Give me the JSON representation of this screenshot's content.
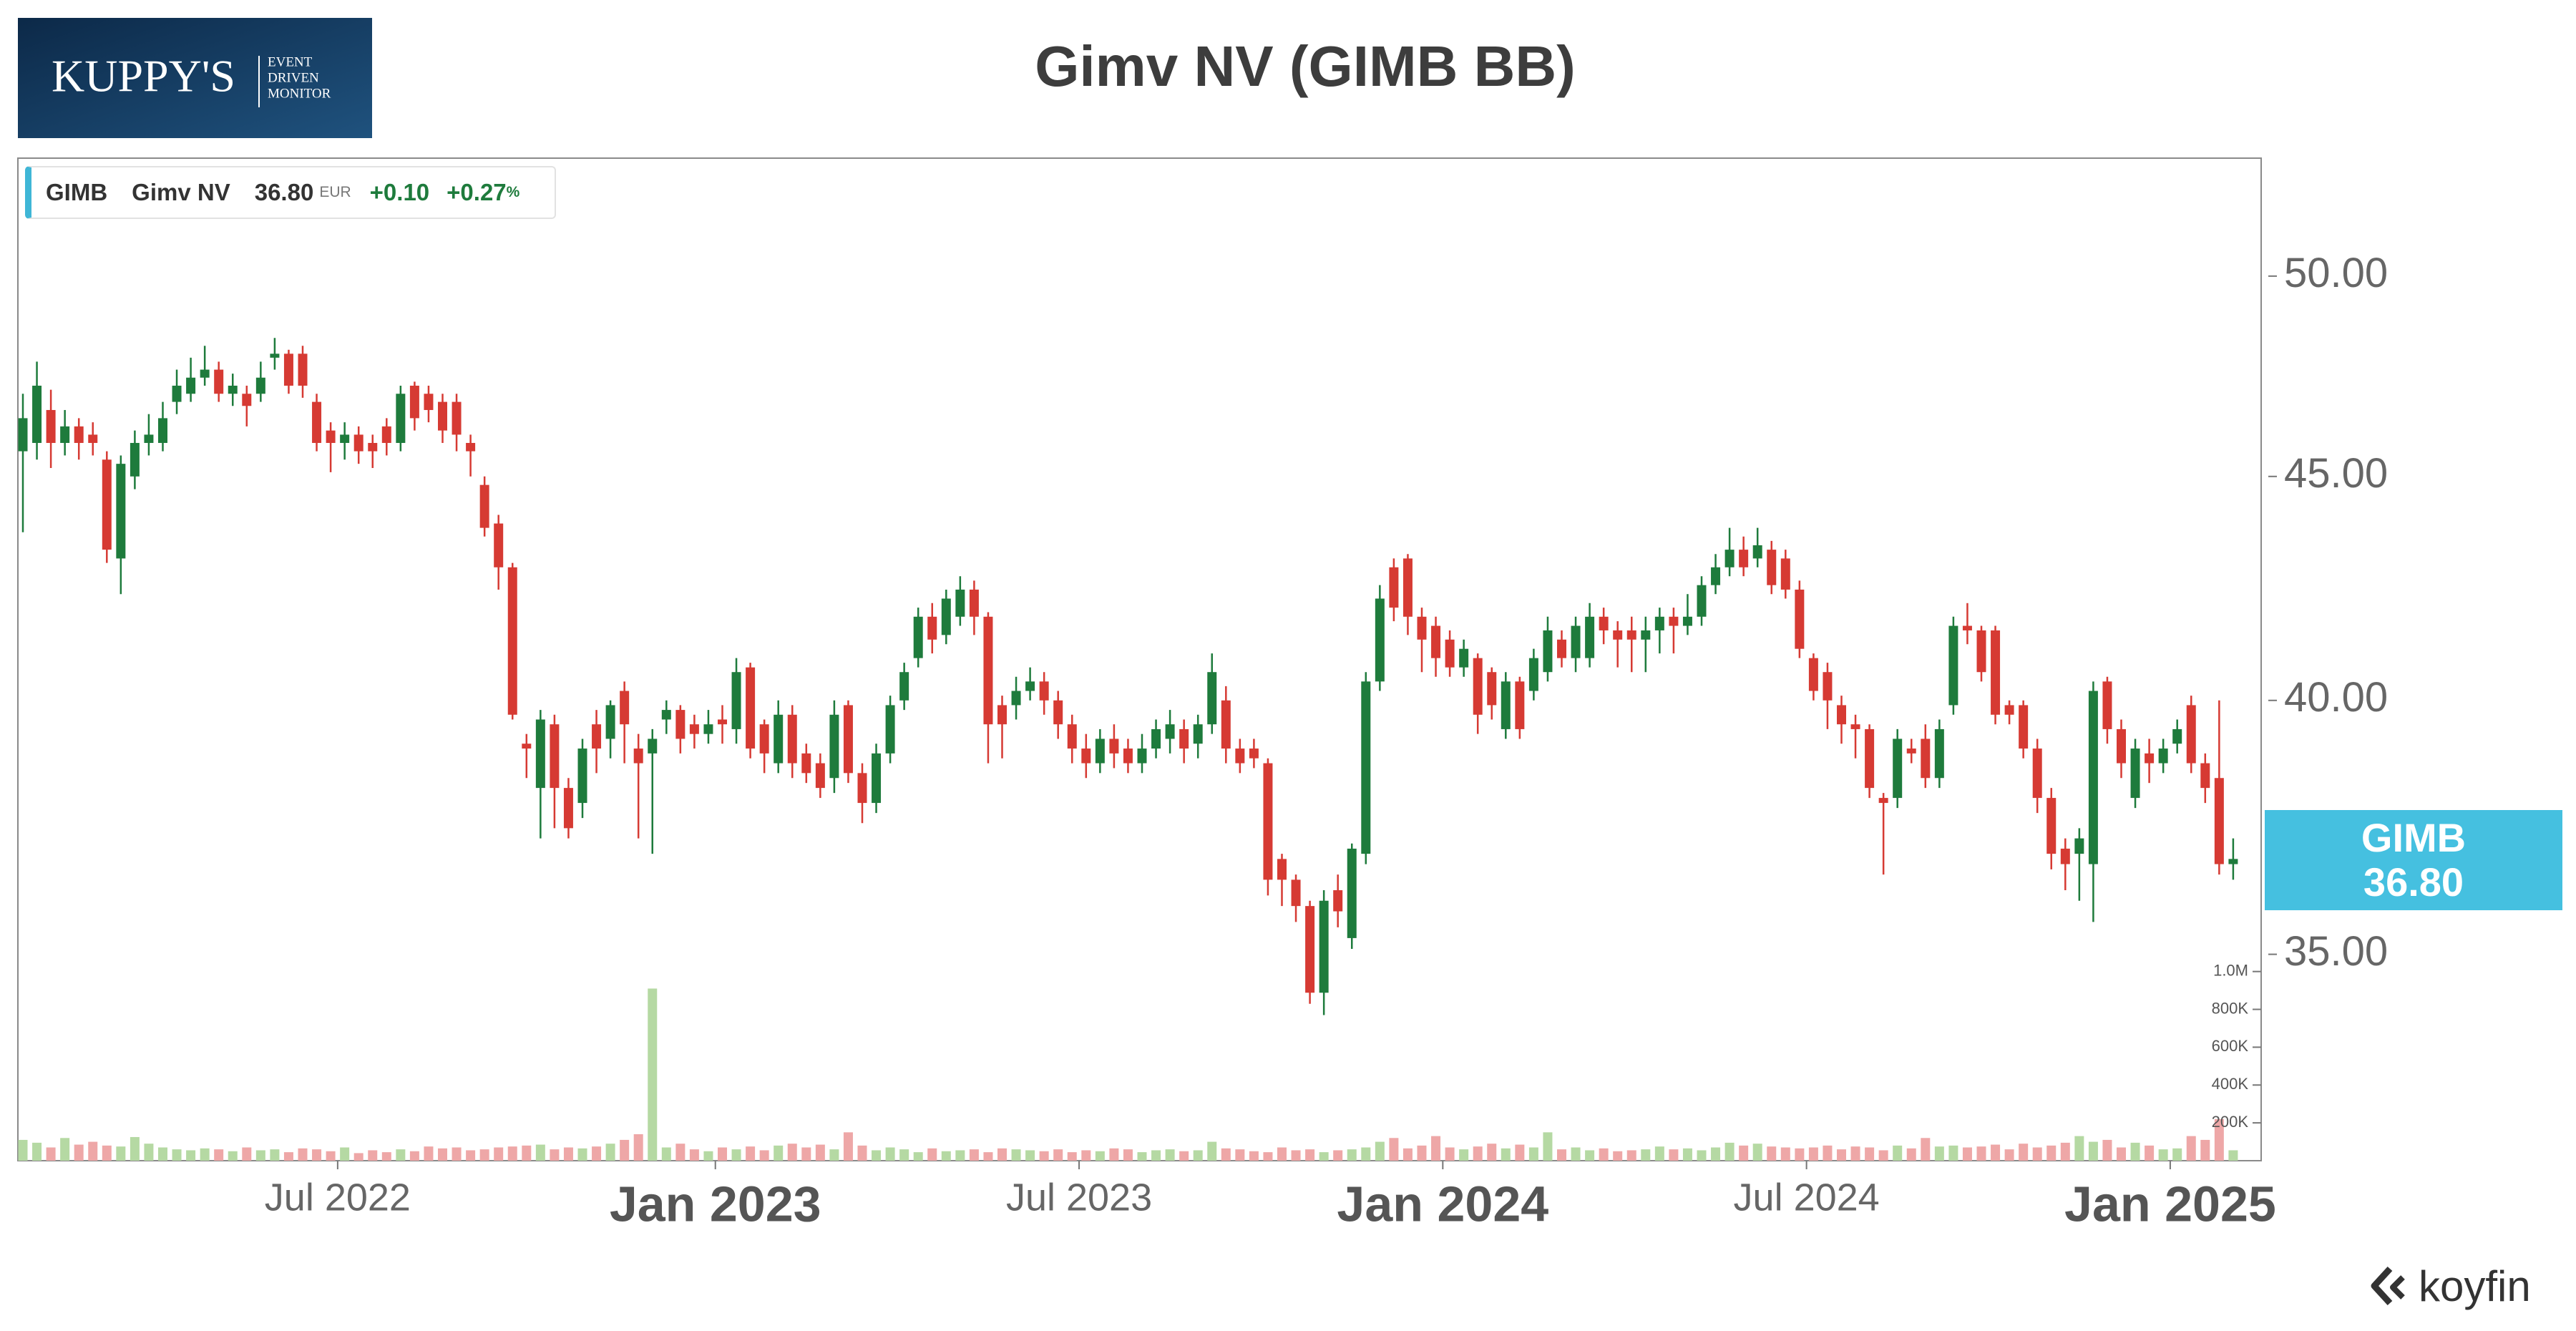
{
  "logo": {
    "name": "KUPPY'S",
    "tagline": [
      "EVENT",
      "DRIVEN",
      "MONITOR"
    ]
  },
  "quote": {
    "ticker": "GIMB",
    "name": "Gimv NV",
    "last": "36.80",
    "currency": "EUR",
    "change": "+0.10",
    "change_pct": "+0.27",
    "pct_unit": "%"
  },
  "price_tag": {
    "ticker": "GIMB",
    "last": "36.80"
  },
  "brand": "koyfin",
  "chart_data": {
    "type": "candlestick",
    "title": "Gimv NV (GIMB BB)",
    "x": [
      "2022-01",
      "2022-01",
      "2022-02",
      "2022-02",
      "2022-02",
      "2022-02",
      "2022-03",
      "2022-03",
      "2022-03",
      "2022-03",
      "2022-04",
      "2022-04",
      "2022-04",
      "2022-04",
      "2022-04",
      "2022-05",
      "2022-05",
      "2022-05",
      "2022-05",
      "2022-06",
      "2022-06",
      "2022-06",
      "2022-06",
      "2022-07",
      "2022-07",
      "2022-07",
      "2022-07",
      "2022-07",
      "2022-08",
      "2022-08",
      "2022-08",
      "2022-08",
      "2022-09",
      "2022-09",
      "2022-09",
      "2022-09",
      "2022-09",
      "2022-10",
      "2022-10",
      "2022-10",
      "2022-10",
      "2022-11",
      "2022-11",
      "2022-11",
      "2022-11",
      "2022-12",
      "2022-12",
      "2022-12",
      "2022-12",
      "2022-12",
      "2023-01",
      "2023-01",
      "2023-01",
      "2023-01",
      "2023-02",
      "2023-02",
      "2023-02",
      "2023-02",
      "2023-03",
      "2023-03",
      "2023-03",
      "2023-03",
      "2023-03",
      "2023-04",
      "2023-04",
      "2023-04",
      "2023-04",
      "2023-05",
      "2023-05",
      "2023-05",
      "2023-05",
      "2023-06",
      "2023-06",
      "2023-06",
      "2023-06",
      "2023-06",
      "2023-07",
      "2023-07",
      "2023-07",
      "2023-07",
      "2023-08",
      "2023-08",
      "2023-08",
      "2023-08",
      "2023-09",
      "2023-09",
      "2023-09",
      "2023-09",
      "2023-09",
      "2023-10",
      "2023-10",
      "2023-10",
      "2023-10",
      "2023-11",
      "2023-11",
      "2023-11",
      "2023-11",
      "2023-12",
      "2023-12",
      "2023-12",
      "2023-12",
      "2023-12",
      "2024-01",
      "2024-01",
      "2024-01",
      "2024-01",
      "2024-02",
      "2024-02",
      "2024-02",
      "2024-02",
      "2024-03",
      "2024-03",
      "2024-03",
      "2024-03",
      "2024-03",
      "2024-04",
      "2024-04",
      "2024-04",
      "2024-04",
      "2024-05",
      "2024-05",
      "2024-05",
      "2024-05",
      "2024-05",
      "2024-06",
      "2024-06",
      "2024-06",
      "2024-06",
      "2024-07",
      "2024-07",
      "2024-07",
      "2024-07",
      "2024-08",
      "2024-08",
      "2024-08",
      "2024-08",
      "2024-08",
      "2024-09",
      "2024-09",
      "2024-09",
      "2024-09",
      "2024-10",
      "2024-10",
      "2024-10",
      "2024-10",
      "2024-11",
      "2024-11",
      "2024-11",
      "2024-11",
      "2024-11",
      "2024-12",
      "2024-12",
      "2024-12",
      "2024-12",
      "2025-01",
      "2025-01",
      "2025-01",
      "2025-01",
      "2025-01"
    ],
    "open": [
      45.6,
      45.8,
      46.6,
      45.8,
      46.2,
      46.0,
      45.4,
      43.1,
      45.0,
      45.8,
      45.8,
      46.8,
      47.0,
      47.4,
      47.6,
      47.0,
      47.0,
      47.0,
      47.9,
      48.0,
      48.0,
      46.8,
      46.1,
      45.8,
      46.0,
      45.8,
      46.2,
      45.8,
      47.2,
      47.0,
      46.8,
      46.8,
      45.8,
      44.8,
      43.9,
      42.9,
      39.1,
      38.2,
      39.5,
      38.2,
      37.9,
      39.5,
      39.2,
      40.2,
      39.0,
      38.9,
      39.6,
      39.8,
      39.5,
      39.3,
      39.6,
      39.4,
      40.7,
      39.5,
      38.7,
      39.7,
      38.9,
      38.7,
      38.4,
      39.9,
      38.5,
      37.9,
      38.9,
      40.0,
      40.9,
      41.8,
      41.4,
      41.8,
      42.4,
      41.8,
      39.9,
      39.9,
      40.2,
      40.4,
      40.0,
      39.5,
      39.0,
      38.7,
      39.2,
      39.0,
      38.7,
      39.0,
      39.2,
      39.4,
      39.1,
      39.5,
      40.0,
      39.0,
      39.0,
      38.7,
      36.8,
      36.4,
      35.9,
      34.3,
      36.2,
      35.3,
      36.9,
      40.4,
      42.9,
      43.1,
      41.8,
      41.6,
      41.3,
      40.7,
      40.9,
      40.6,
      39.4,
      40.4,
      40.2,
      40.6,
      41.3,
      40.9,
      40.9,
      41.8,
      41.5,
      41.5,
      41.3,
      41.5,
      41.8,
      41.6,
      41.8,
      42.5,
      42.9,
      43.3,
      43.1,
      43.3,
      43.1,
      42.4,
      40.9,
      40.6,
      39.9,
      39.5,
      39.4,
      38.0,
      38.0,
      39.0,
      39.2,
      38.4,
      39.9,
      41.6,
      41.5,
      41.5,
      39.9,
      39.9,
      39.0,
      38.0,
      37.0,
      36.9,
      36.7,
      40.4,
      39.4,
      38.0,
      38.9,
      38.7,
      39.1,
      39.9,
      38.7,
      38.4,
      36.7
    ],
    "high": [
      47.0,
      47.8,
      47.1,
      46.6,
      46.4,
      46.3,
      45.6,
      45.5,
      46.1,
      46.5,
      46.8,
      47.6,
      47.9,
      48.2,
      47.8,
      47.5,
      47.2,
      47.8,
      48.4,
      48.1,
      48.2,
      47.0,
      46.3,
      46.3,
      46.2,
      46.0,
      46.4,
      47.2,
      47.3,
      47.2,
      47.0,
      47.0,
      46.0,
      45.0,
      44.1,
      43.0,
      39.3,
      39.8,
      39.7,
      38.4,
      39.2,
      39.8,
      40.0,
      40.4,
      39.3,
      39.4,
      40.0,
      39.9,
      39.7,
      39.8,
      39.9,
      40.9,
      40.8,
      39.6,
      40.0,
      39.9,
      39.1,
      38.9,
      40.0,
      40.0,
      38.7,
      39.1,
      40.1,
      40.8,
      42.0,
      42.1,
      42.4,
      42.7,
      42.6,
      41.9,
      40.1,
      40.5,
      40.7,
      40.6,
      40.2,
      39.7,
      39.3,
      39.4,
      39.5,
      39.2,
      39.3,
      39.6,
      39.8,
      39.6,
      39.7,
      41.0,
      40.3,
      39.2,
      39.2,
      38.8,
      36.9,
      36.5,
      36.0,
      36.2,
      36.5,
      37.1,
      40.6,
      42.5,
      43.1,
      43.2,
      42.0,
      41.8,
      41.5,
      41.3,
      41.0,
      40.7,
      40.6,
      40.5,
      41.1,
      41.8,
      41.5,
      41.8,
      42.1,
      42.0,
      41.7,
      41.8,
      41.8,
      42.0,
      42.0,
      42.3,
      42.7,
      43.2,
      43.8,
      43.6,
      43.8,
      43.5,
      43.3,
      42.6,
      41.0,
      40.8,
      40.1,
      39.7,
      39.5,
      38.1,
      39.4,
      39.2,
      39.5,
      39.6,
      41.8,
      42.1,
      41.6,
      41.6,
      40.0,
      40.0,
      39.2,
      38.2,
      37.2,
      37.4,
      40.4,
      40.5,
      39.6,
      39.2,
      39.2,
      39.2,
      39.6,
      40.1,
      38.9,
      40.0,
      37.2
    ],
    "low": [
      43.7,
      45.4,
      45.2,
      45.5,
      45.4,
      45.5,
      43.0,
      42.3,
      44.7,
      45.5,
      45.6,
      46.5,
      46.8,
      47.2,
      46.8,
      46.7,
      46.2,
      46.8,
      47.6,
      47.0,
      46.9,
      45.6,
      45.1,
      45.4,
      45.3,
      45.2,
      45.5,
      45.6,
      46.1,
      46.3,
      45.8,
      45.6,
      45.0,
      43.6,
      42.4,
      39.6,
      38.4,
      37.2,
      37.4,
      37.2,
      37.6,
      38.5,
      38.8,
      38.7,
      37.2,
      36.9,
      39.3,
      38.9,
      39.0,
      39.1,
      39.1,
      39.1,
      38.8,
      38.5,
      38.5,
      38.4,
      38.3,
      38.0,
      38.1,
      38.3,
      37.5,
      37.7,
      38.7,
      39.8,
      40.7,
      41.0,
      41.2,
      41.6,
      41.4,
      38.7,
      38.8,
      39.6,
      40.0,
      39.7,
      39.2,
      38.7,
      38.4,
      38.5,
      38.6,
      38.5,
      38.5,
      38.8,
      38.9,
      38.7,
      38.8,
      39.3,
      38.7,
      38.5,
      38.6,
      36.1,
      35.9,
      35.6,
      34.1,
      33.9,
      35.5,
      35.1,
      36.7,
      40.2,
      41.7,
      41.4,
      40.6,
      40.5,
      40.5,
      40.5,
      39.3,
      39.6,
      39.2,
      39.2,
      40.0,
      40.4,
      40.7,
      40.6,
      40.7,
      41.2,
      40.7,
      40.6,
      40.6,
      41.0,
      41.0,
      41.4,
      41.6,
      42.3,
      42.7,
      42.7,
      42.9,
      42.3,
      42.2,
      40.9,
      40.0,
      39.4,
      39.1,
      38.8,
      38.0,
      36.5,
      37.8,
      38.7,
      38.2,
      38.2,
      39.7,
      41.2,
      40.4,
      39.5,
      39.5,
      38.8,
      37.7,
      36.6,
      36.2,
      36.0,
      35.6,
      39.1,
      38.4,
      37.8,
      38.3,
      38.5,
      38.9,
      38.5,
      37.9,
      36.5,
      36.4
    ],
    "close": [
      46.4,
      47.2,
      45.8,
      46.2,
      45.8,
      45.8,
      43.3,
      45.3,
      45.8,
      46.0,
      46.4,
      47.2,
      47.4,
      47.6,
      47.0,
      47.2,
      46.7,
      47.4,
      48.0,
      47.2,
      47.2,
      45.8,
      45.8,
      46.0,
      45.6,
      45.6,
      45.8,
      47.0,
      46.4,
      46.6,
      46.1,
      46.0,
      45.6,
      43.8,
      42.9,
      39.7,
      39.0,
      39.6,
      38.2,
      37.4,
      39.0,
      39.0,
      39.9,
      39.5,
      38.7,
      39.2,
      39.8,
      39.2,
      39.3,
      39.5,
      39.5,
      40.6,
      39.0,
      38.9,
      39.7,
      38.7,
      38.5,
      38.2,
      39.7,
      38.5,
      37.9,
      38.9,
      39.9,
      40.6,
      41.8,
      41.3,
      42.2,
      42.4,
      41.8,
      39.5,
      39.5,
      40.2,
      40.4,
      40.0,
      39.5,
      39.0,
      38.7,
      39.2,
      38.9,
      38.7,
      39.0,
      39.4,
      39.5,
      39.0,
      39.5,
      40.6,
      39.0,
      38.7,
      38.8,
      36.4,
      36.4,
      35.9,
      34.3,
      36.0,
      35.8,
      37.0,
      40.4,
      42.2,
      42.0,
      41.8,
      41.3,
      40.9,
      40.7,
      41.1,
      39.7,
      39.9,
      40.4,
      39.4,
      40.9,
      41.5,
      40.9,
      41.6,
      41.8,
      41.5,
      41.3,
      41.3,
      41.5,
      41.8,
      41.6,
      41.8,
      42.5,
      42.9,
      43.3,
      42.9,
      43.4,
      42.5,
      42.4,
      41.1,
      40.2,
      40.0,
      39.5,
      39.4,
      38.2,
      37.9,
      39.2,
      38.9,
      38.4,
      39.4,
      41.6,
      41.5,
      40.6,
      39.7,
      39.7,
      39.0,
      38.0,
      36.9,
      36.7,
      37.2,
      40.2,
      39.4,
      38.7,
      39.0,
      38.7,
      39.0,
      39.4,
      38.7,
      38.2,
      36.7,
      36.8
    ],
    "volume": [
      110000,
      95000,
      70000,
      120000,
      85000,
      100000,
      80000,
      75000,
      125000,
      90000,
      70000,
      60000,
      55000,
      65000,
      60000,
      50000,
      70000,
      55000,
      60000,
      45000,
      65000,
      60000,
      50000,
      70000,
      40000,
      55000,
      45000,
      60000,
      50000,
      75000,
      65000,
      70000,
      55000,
      60000,
      70000,
      75000,
      80000,
      85000,
      60000,
      70000,
      65000,
      75000,
      90000,
      110000,
      140000,
      910000,
      70000,
      90000,
      60000,
      50000,
      70000,
      60000,
      75000,
      55000,
      80000,
      90000,
      70000,
      85000,
      60000,
      150000,
      80000,
      55000,
      70000,
      60000,
      45000,
      65000,
      50000,
      55000,
      60000,
      45000,
      65000,
      60000,
      55000,
      50000,
      60000,
      45000,
      55000,
      50000,
      65000,
      60000,
      45000,
      55000,
      60000,
      50000,
      55000,
      100000,
      65000,
      60000,
      50000,
      45000,
      70000,
      55000,
      60000,
      45000,
      55000,
      60000,
      70000,
      100000,
      120000,
      65000,
      80000,
      130000,
      70000,
      60000,
      75000,
      90000,
      65000,
      85000,
      70000,
      150000,
      60000,
      70000,
      55000,
      65000,
      50000,
      55000,
      60000,
      75000,
      60000,
      65000,
      55000,
      70000,
      95000,
      80000,
      90000,
      75000,
      70000,
      65000,
      70000,
      80000,
      60000,
      75000,
      70000,
      55000,
      80000,
      65000,
      120000,
      75000,
      80000,
      70000,
      75000,
      85000,
      60000,
      90000,
      70000,
      80000,
      95000,
      130000,
      100000,
      110000,
      70000,
      95000,
      80000,
      60000,
      65000,
      130000,
      110000,
      220000,
      55000
    ],
    "up_color": "#1e7b3c",
    "down_color": "#d63a33",
    "volume_up_color": "#b5d9a3",
    "volume_down_color": "#eea7a7",
    "log_y": true,
    "grid": false,
    "ylim": [
      31.4,
      53.2
    ],
    "yticks": [
      {
        "value": 35,
        "label": "35.00"
      },
      {
        "value": 40,
        "label": "40.00"
      },
      {
        "value": 45,
        "label": "45.00"
      },
      {
        "value": 50,
        "label": "50.00"
      }
    ],
    "y2lim": [
      0,
      5300000
    ],
    "y2ticks": [
      {
        "value": 200000,
        "label": "200K"
      },
      {
        "value": 400000,
        "label": "400K"
      },
      {
        "value": 600000,
        "label": "600K"
      },
      {
        "value": 800000,
        "label": "800K"
      },
      {
        "value": 1000000,
        "label": "1.0M"
      }
    ],
    "xticks": [
      {
        "value": "2022-07",
        "label": "Jul 2022"
      },
      {
        "value": "2023-01",
        "label": "Jan 2023"
      },
      {
        "value": "2023-07",
        "label": "Jul 2023"
      },
      {
        "value": "2024-01",
        "label": "Jan 2024"
      },
      {
        "value": "2024-07",
        "label": "Jul 2024"
      },
      {
        "value": "2025-01",
        "label": "Jan 2025"
      }
    ]
  }
}
